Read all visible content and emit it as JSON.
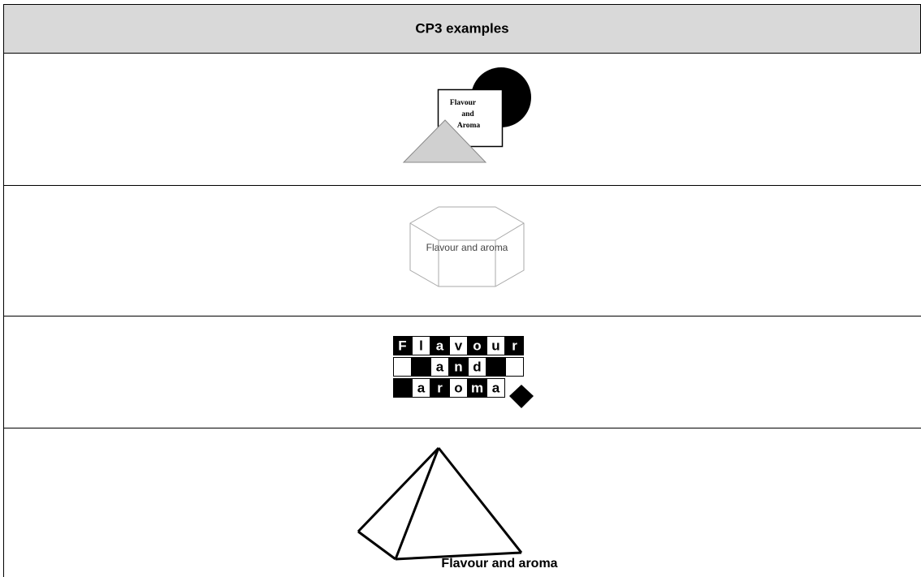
{
  "header": {
    "title": "CP3 examples"
  },
  "rows": [
    {
      "lines": [
        "Flavour",
        "and",
        "Aroma"
      ]
    },
    {
      "label": "Flavour and aroma"
    },
    {
      "letters": [
        [
          "F",
          "l",
          "a",
          "v",
          "o",
          "u",
          "r"
        ],
        [
          "a",
          "n",
          "d"
        ],
        [
          "a",
          "r",
          "o",
          "m",
          "a"
        ]
      ]
    },
    {
      "label": "Flavour and aroma"
    }
  ]
}
